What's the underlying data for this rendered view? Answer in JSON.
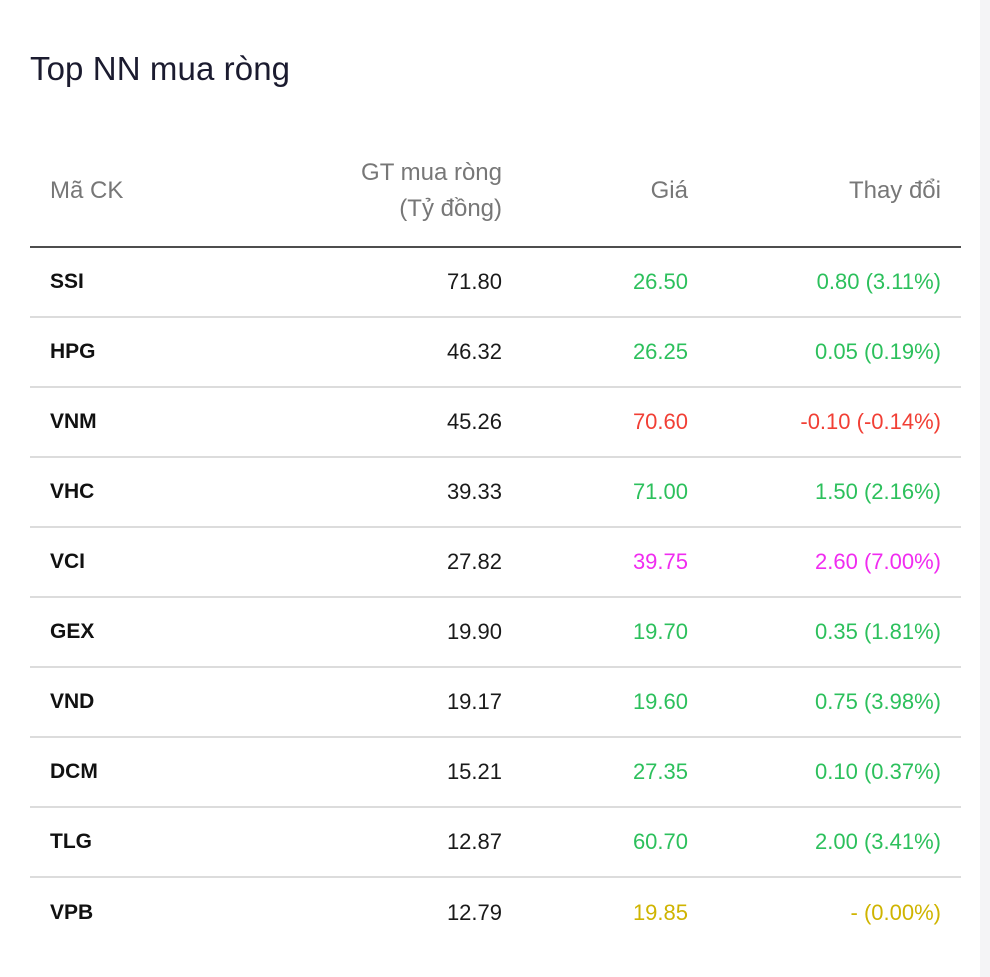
{
  "title": "Top NN mua ròng",
  "columns": {
    "symbol": "Mã CK",
    "net_value_line1": "GT mua ròng",
    "net_value_line2": "(Tỷ đồng)",
    "price": "Giá",
    "change": "Thay đổi"
  },
  "colors": {
    "up": "#2cc05c",
    "down": "#f13f35",
    "ceiling": "#f02cf0",
    "reference": "#cfb400"
  },
  "rows": [
    {
      "symbol": "SSI",
      "net_value": "71.80",
      "price": "26.50",
      "change": "0.80 (3.11%)",
      "status": "up"
    },
    {
      "symbol": "HPG",
      "net_value": "46.32",
      "price": "26.25",
      "change": "0.05 (0.19%)",
      "status": "up"
    },
    {
      "symbol": "VNM",
      "net_value": "45.26",
      "price": "70.60",
      "change": "-0.10 (-0.14%)",
      "status": "down"
    },
    {
      "symbol": "VHC",
      "net_value": "39.33",
      "price": "71.00",
      "change": "1.50 (2.16%)",
      "status": "up"
    },
    {
      "symbol": "VCI",
      "net_value": "27.82",
      "price": "39.75",
      "change": "2.60 (7.00%)",
      "status": "ceiling"
    },
    {
      "symbol": "GEX",
      "net_value": "19.90",
      "price": "19.70",
      "change": "0.35 (1.81%)",
      "status": "up"
    },
    {
      "symbol": "VND",
      "net_value": "19.17",
      "price": "19.60",
      "change": "0.75 (3.98%)",
      "status": "up"
    },
    {
      "symbol": "DCM",
      "net_value": "15.21",
      "price": "27.35",
      "change": "0.10 (0.37%)",
      "status": "up"
    },
    {
      "symbol": "TLG",
      "net_value": "12.87",
      "price": "60.70",
      "change": "2.00 (3.41%)",
      "status": "up"
    },
    {
      "symbol": "VPB",
      "net_value": "12.79",
      "price": "19.85",
      "change": "- (0.00%)",
      "status": "reference"
    }
  ]
}
